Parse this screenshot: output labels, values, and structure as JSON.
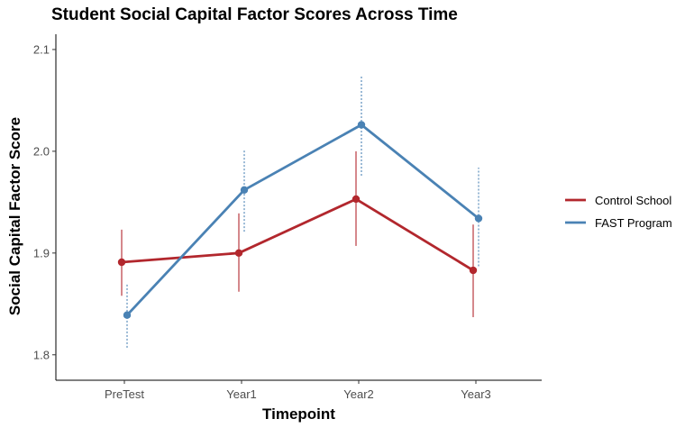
{
  "chart_data": {
    "type": "line",
    "title": "Student Social Capital Factor Scores Across Time",
    "xlabel": "Timepoint",
    "ylabel": "Social Capital Factor Score",
    "categories": [
      "PreTest",
      "Year1",
      "Year2",
      "Year3"
    ],
    "ylim": [
      1.775,
      2.115
    ],
    "yticks": [
      1.8,
      1.9,
      2.0,
      2.1
    ],
    "ytick_labels": [
      "1.8",
      "1.9",
      "2.0",
      "2.1"
    ],
    "grid": false,
    "legend_position": "right",
    "series": [
      {
        "name": "Control School",
        "color": "#b2272d",
        "error_style": "solid",
        "values": [
          1.891,
          1.9,
          1.953,
          1.883
        ],
        "lower": [
          1.858,
          1.862,
          1.907,
          1.837
        ],
        "upper": [
          1.923,
          1.939,
          2.0,
          1.928
        ]
      },
      {
        "name": "FAST Program",
        "color": "#4a82b4",
        "error_style": "dotted",
        "values": [
          1.839,
          1.962,
          2.026,
          1.934
        ],
        "lower": [
          1.807,
          1.921,
          1.976,
          1.887
        ],
        "upper": [
          1.87,
          2.002,
          2.075,
          1.984
        ]
      }
    ]
  }
}
